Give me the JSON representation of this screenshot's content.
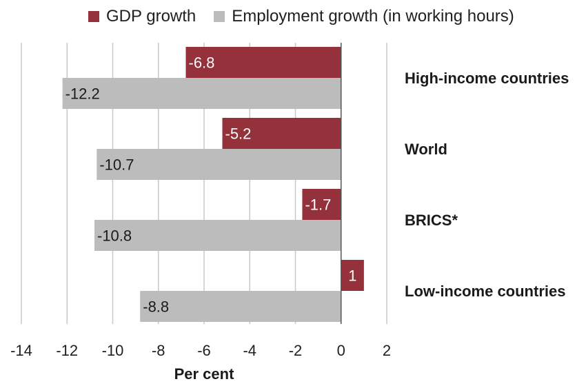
{
  "chart_data": {
    "type": "bar",
    "orientation": "horizontal",
    "title": "",
    "xlabel": "Per cent",
    "ylabel": "",
    "xlim": [
      -14,
      2
    ],
    "x_ticks": [
      -14,
      -12,
      -10,
      -8,
      -6,
      -4,
      -2,
      0,
      2
    ],
    "grid": "vertical",
    "legend_position": "top",
    "categories": [
      "High-income countries",
      "World",
      "BRICS*",
      "Low-income countries"
    ],
    "series": [
      {
        "name": "GDP growth",
        "color": "#94313a",
        "label_color": "#ffffff",
        "values": [
          -6.8,
          -5.2,
          -1.7,
          1
        ]
      },
      {
        "name": "Employment growth (in working hours)",
        "color": "#bcbcbc",
        "label_color": "#1a1a1a",
        "values": [
          -12.2,
          -10.7,
          -10.8,
          -8.8
        ]
      }
    ]
  }
}
